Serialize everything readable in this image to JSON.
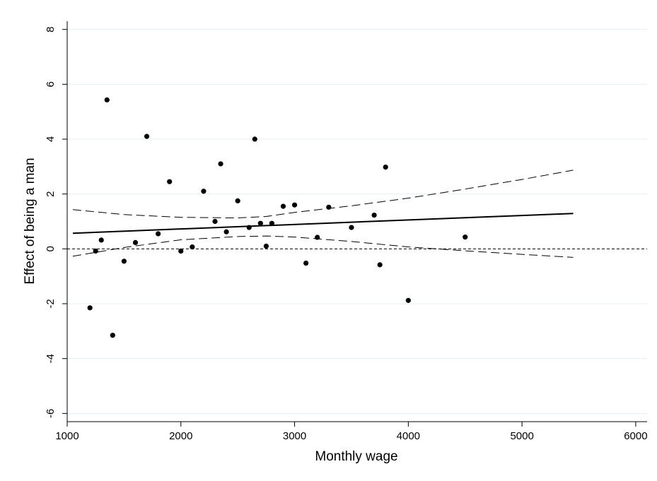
{
  "chart_data": {
    "type": "scatter",
    "xlabel": "Monthly wage",
    "ylabel": "Effect of being a man",
    "xlim": [
      1000,
      6100
    ],
    "ylim": [
      -6.3,
      8.3
    ],
    "xticks": [
      1000,
      2000,
      3000,
      4000,
      5000,
      6000
    ],
    "xtick_labels": [
      "1000",
      "2000",
      "3000",
      "4000",
      "5000",
      "6000"
    ],
    "yticks": [
      -6,
      -4,
      -2,
      0,
      2,
      4,
      6,
      8
    ],
    "ytick_labels": [
      "-6",
      "-4",
      "-2",
      "0",
      "2",
      "4",
      "6",
      "8"
    ],
    "grid": true,
    "reference_line_y": 0,
    "points": [
      {
        "x": 1200,
        "y": -2.15
      },
      {
        "x": 1250,
        "y": -0.08
      },
      {
        "x": 1300,
        "y": 0.32
      },
      {
        "x": 1350,
        "y": 5.43
      },
      {
        "x": 1400,
        "y": -3.15
      },
      {
        "x": 1500,
        "y": -0.45
      },
      {
        "x": 1600,
        "y": 0.23
      },
      {
        "x": 1700,
        "y": 4.1
      },
      {
        "x": 1800,
        "y": 0.55
      },
      {
        "x": 1900,
        "y": 2.45
      },
      {
        "x": 2000,
        "y": -0.08
      },
      {
        "x": 2100,
        "y": 0.07
      },
      {
        "x": 2200,
        "y": 2.1
      },
      {
        "x": 2300,
        "y": 1.0
      },
      {
        "x": 2350,
        "y": 3.1
      },
      {
        "x": 2400,
        "y": 0.62
      },
      {
        "x": 2500,
        "y": 1.75
      },
      {
        "x": 2600,
        "y": 0.78
      },
      {
        "x": 2650,
        "y": 4.0
      },
      {
        "x": 2700,
        "y": 0.93
      },
      {
        "x": 2750,
        "y": 0.1
      },
      {
        "x": 2800,
        "y": 0.93
      },
      {
        "x": 2900,
        "y": 1.55
      },
      {
        "x": 3000,
        "y": 1.6
      },
      {
        "x": 3100,
        "y": -0.52
      },
      {
        "x": 3200,
        "y": 0.42
      },
      {
        "x": 3300,
        "y": 1.52
      },
      {
        "x": 3500,
        "y": 0.78
      },
      {
        "x": 3700,
        "y": 1.23
      },
      {
        "x": 3750,
        "y": -0.58
      },
      {
        "x": 3800,
        "y": 2.98
      },
      {
        "x": 4000,
        "y": -1.88
      },
      {
        "x": 4500,
        "y": 0.43
      }
    ],
    "series": [
      {
        "style": "solid",
        "x": [
          1050,
          5450
        ],
        "y": [
          0.57,
          1.29
        ]
      },
      {
        "style": "dashed",
        "x": [
          1050,
          1500,
          2000,
          2500,
          2750,
          3000,
          3500,
          4000,
          4500,
          5000,
          5450
        ],
        "y": [
          1.43,
          1.25,
          1.15,
          1.13,
          1.18,
          1.33,
          1.57,
          1.85,
          2.18,
          2.53,
          2.87
        ]
      },
      {
        "style": "dashed",
        "x": [
          1050,
          1500,
          2000,
          2500,
          2750,
          3000,
          3500,
          4000,
          4500,
          5000,
          5450
        ],
        "y": [
          -0.27,
          0.05,
          0.33,
          0.45,
          0.47,
          0.43,
          0.27,
          0.07,
          -0.07,
          -0.2,
          -0.31
        ]
      }
    ]
  }
}
